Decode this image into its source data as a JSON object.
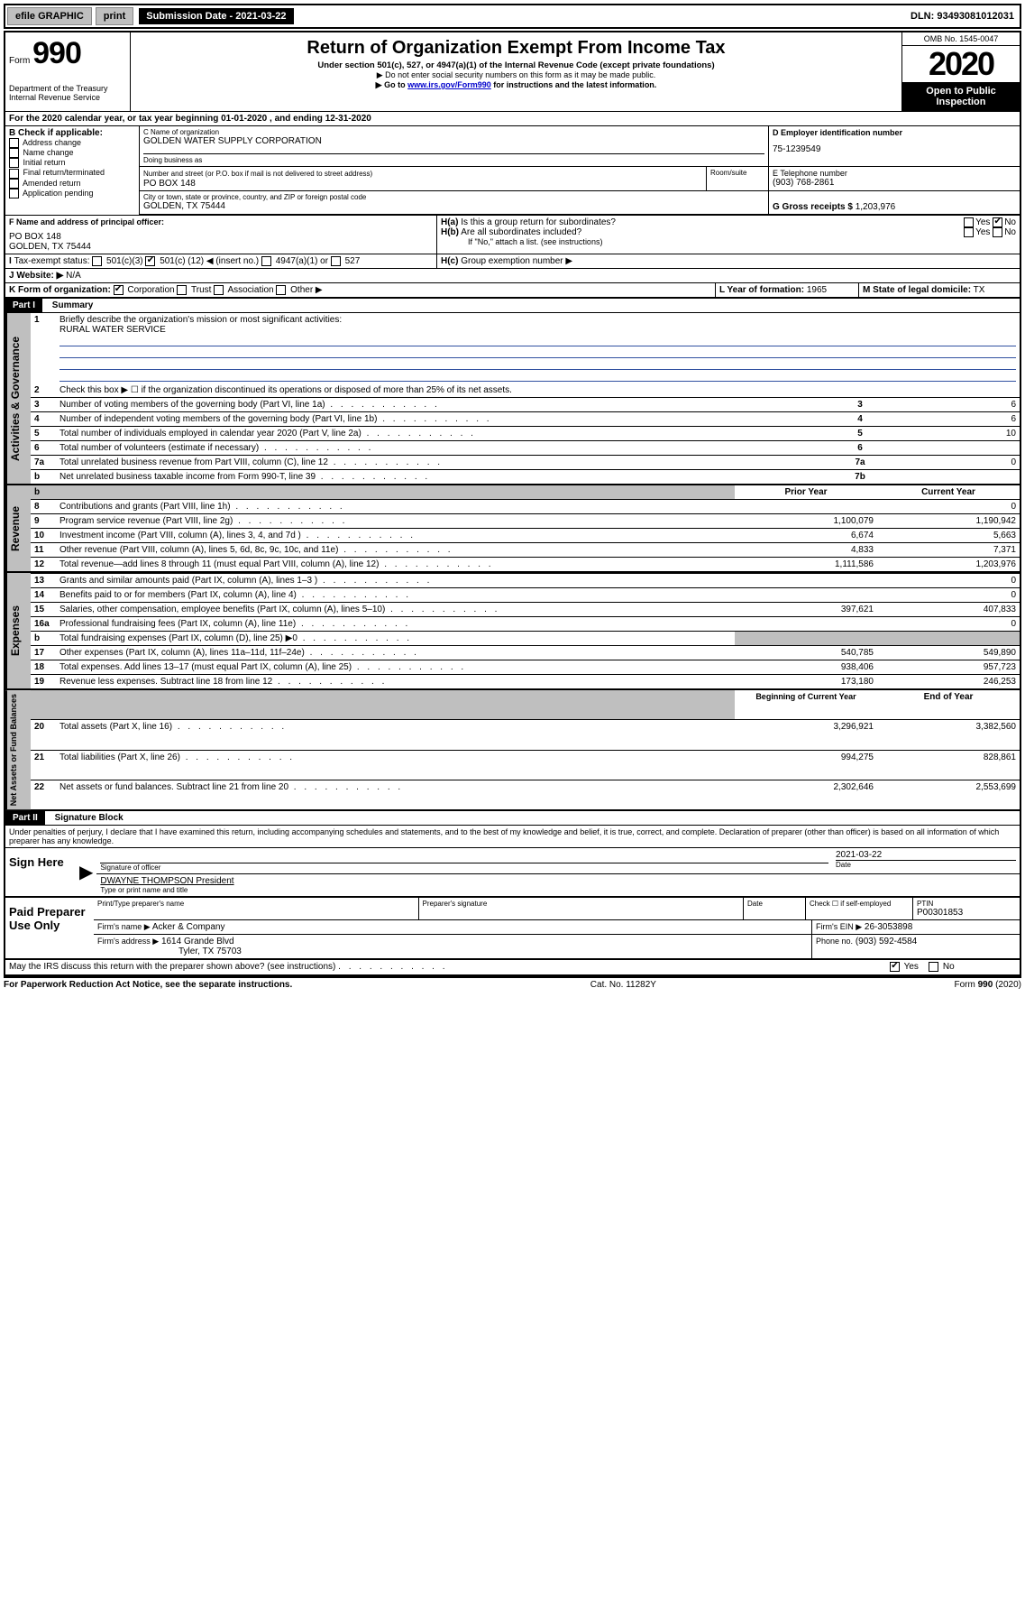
{
  "topbar": {
    "efile": "efile GRAPHIC",
    "print": "print",
    "submission_label": "Submission Date - 2021-03-22",
    "dln": "DLN: 93493081012031"
  },
  "header": {
    "form_prefix": "Form",
    "form_number": "990",
    "dept1": "Department of the Treasury",
    "dept2": "Internal Revenue Service",
    "title": "Return of Organization Exempt From Income Tax",
    "subtitle": "Under section 501(c), 527, or 4947(a)(1) of the Internal Revenue Code (except private foundations)",
    "note1": "▶ Do not enter social security numbers on this form as it may be made public.",
    "note2_pre": "▶ Go to ",
    "note2_link": "www.irs.gov/Form990",
    "note2_post": " for instructions and the latest information.",
    "omb": "OMB No. 1545-0047",
    "year": "2020",
    "open": "Open to Public Inspection"
  },
  "line_a": "For the 2020 calendar year, or tax year beginning 01-01-2020    , and ending 12-31-2020",
  "box_b": {
    "title": "B Check if applicable:",
    "items": [
      "Address change",
      "Name change",
      "Initial return",
      "Final return/terminated",
      "Amended return",
      "Application pending"
    ]
  },
  "box_c": {
    "label_name": "C Name of organization",
    "name": "GOLDEN WATER SUPPLY CORPORATION",
    "dba_label": "Doing business as",
    "street_label": "Number and street (or P.O. box if mail is not delivered to street address)",
    "room_label": "Room/suite",
    "street": "PO BOX 148",
    "city_label": "City or town, state or province, country, and ZIP or foreign postal code",
    "city": "GOLDEN, TX  75444"
  },
  "box_d": {
    "label": "D Employer identification number",
    "value": "75-1239549"
  },
  "box_e": {
    "label": "E Telephone number",
    "value": "(903) 768-2861"
  },
  "box_g": {
    "label": "G Gross receipts $",
    "value": "1,203,976"
  },
  "box_f": {
    "label": "F Name and address of principal officer:",
    "line1": "PO BOX 148",
    "line2": "GOLDEN, TX  75444"
  },
  "box_h": {
    "ha": "Is this a group return for subordinates?",
    "hb": "Are all subordinates included?",
    "hnote": "If \"No,\" attach a list. (see instructions)",
    "hc": "Group exemption number ▶"
  },
  "tax_status": {
    "label": "Tax-exempt status:",
    "opt1": "501(c)(3)",
    "opt2_pre": "501(c) (",
    "opt2_val": "12",
    "opt2_post": ") ◀ (insert no.)",
    "opt3": "4947(a)(1) or",
    "opt4": "527"
  },
  "box_j": {
    "label": "Website: ▶",
    "value": "N/A"
  },
  "box_k": {
    "label": "K Form of organization:",
    "opts": [
      "Corporation",
      "Trust",
      "Association",
      "Other ▶"
    ]
  },
  "box_l": {
    "label": "L Year of formation:",
    "value": "1965"
  },
  "box_m": {
    "label": "M State of legal domicile:",
    "value": "TX"
  },
  "part1": {
    "title": "Part I",
    "subtitle": "Summary",
    "q1": "Briefly describe the organization's mission or most significant activities:",
    "q1_answer": "RURAL WATER SERVICE",
    "q2": "Check this box ▶ ☐  if the organization discontinued its operations or disposed of more than 25% of its net assets.",
    "lines": [
      {
        "n": "3",
        "text": "Number of voting members of the governing body (Part VI, line 1a)",
        "box": "3",
        "val": "6"
      },
      {
        "n": "4",
        "text": "Number of independent voting members of the governing body (Part VI, line 1b)",
        "box": "4",
        "val": "6"
      },
      {
        "n": "5",
        "text": "Total number of individuals employed in calendar year 2020 (Part V, line 2a)",
        "box": "5",
        "val": "10"
      },
      {
        "n": "6",
        "text": "Total number of volunteers (estimate if necessary)",
        "box": "6",
        "val": ""
      },
      {
        "n": "7a",
        "text": "Total unrelated business revenue from Part VIII, column (C), line 12",
        "box": "7a",
        "val": "0"
      },
      {
        "n": "b",
        "text": "Net unrelated business taxable income from Form 990-T, line 39",
        "box": "7b",
        "val": ""
      }
    ],
    "col_prior": "Prior Year",
    "col_current": "Current Year",
    "revenue": [
      {
        "n": "8",
        "text": "Contributions and grants (Part VIII, line 1h)",
        "prior": "",
        "curr": "0"
      },
      {
        "n": "9",
        "text": "Program service revenue (Part VIII, line 2g)",
        "prior": "1,100,079",
        "curr": "1,190,942"
      },
      {
        "n": "10",
        "text": "Investment income (Part VIII, column (A), lines 3, 4, and 7d )",
        "prior": "6,674",
        "curr": "5,663"
      },
      {
        "n": "11",
        "text": "Other revenue (Part VIII, column (A), lines 5, 6d, 8c, 9c, 10c, and 11e)",
        "prior": "4,833",
        "curr": "7,371"
      },
      {
        "n": "12",
        "text": "Total revenue—add lines 8 through 11 (must equal Part VIII, column (A), line 12)",
        "prior": "1,111,586",
        "curr": "1,203,976"
      }
    ],
    "expenses": [
      {
        "n": "13",
        "text": "Grants and similar amounts paid (Part IX, column (A), lines 1–3 )",
        "prior": "",
        "curr": "0"
      },
      {
        "n": "14",
        "text": "Benefits paid to or for members (Part IX, column (A), line 4)",
        "prior": "",
        "curr": "0"
      },
      {
        "n": "15",
        "text": "Salaries, other compensation, employee benefits (Part IX, column (A), lines 5–10)",
        "prior": "397,621",
        "curr": "407,833"
      },
      {
        "n": "16a",
        "text": "Professional fundraising fees (Part IX, column (A), line 11e)",
        "prior": "",
        "curr": "0"
      },
      {
        "n": "b",
        "text": "Total fundraising expenses (Part IX, column (D), line 25) ▶0",
        "prior": "GREY",
        "curr": "GREY"
      },
      {
        "n": "17",
        "text": "Other expenses (Part IX, column (A), lines 11a–11d, 11f–24e)",
        "prior": "540,785",
        "curr": "549,890"
      },
      {
        "n": "18",
        "text": "Total expenses. Add lines 13–17 (must equal Part IX, column (A), line 25)",
        "prior": "938,406",
        "curr": "957,723"
      },
      {
        "n": "19",
        "text": "Revenue less expenses. Subtract line 18 from line 12",
        "prior": "173,180",
        "curr": "246,253"
      }
    ],
    "col_begin": "Beginning of Current Year",
    "col_end": "End of Year",
    "netassets": [
      {
        "n": "20",
        "text": "Total assets (Part X, line 16)",
        "prior": "3,296,921",
        "curr": "3,382,560"
      },
      {
        "n": "21",
        "text": "Total liabilities (Part X, line 26)",
        "prior": "994,275",
        "curr": "828,861"
      },
      {
        "n": "22",
        "text": "Net assets or fund balances. Subtract line 21 from line 20",
        "prior": "2,302,646",
        "curr": "2,553,699"
      }
    ],
    "vert_gov": "Activities & Governance",
    "vert_rev": "Revenue",
    "vert_exp": "Expenses",
    "vert_net": "Net Assets or Fund Balances"
  },
  "part2": {
    "title": "Part II",
    "subtitle": "Signature Block",
    "perjury": "Under penalties of perjury, I declare that I have examined this return, including accompanying schedules and statements, and to the best of my knowledge and belief, it is true, correct, and complete. Declaration of preparer (other than officer) is based on all information of which preparer has any knowledge.",
    "sign_here": "Sign Here",
    "sig_officer": "Signature of officer",
    "sig_date": "2021-03-22",
    "date_label": "Date",
    "officer_name": "DWAYNE THOMPSON President",
    "type_name": "Type or print name and title",
    "paid": "Paid Preparer Use Only",
    "prep_name_label": "Print/Type preparer's name",
    "prep_sig_label": "Preparer's signature",
    "check_self": "Check ☐ if self-employed",
    "ptin_label": "PTIN",
    "ptin": "P00301853",
    "firm_name_label": "Firm's name    ▶",
    "firm_name": "Acker & Company",
    "firm_ein_label": "Firm's EIN ▶",
    "firm_ein": "26-3053898",
    "firm_addr_label": "Firm's address ▶",
    "firm_addr1": "1614 Grande Blvd",
    "firm_addr2": "Tyler, TX  75703",
    "phone_label": "Phone no.",
    "phone": "(903) 592-4584",
    "discuss": "May the IRS discuss this return with the preparer shown above? (see instructions)",
    "yes": "Yes",
    "no": "No"
  },
  "footer": {
    "left": "For Paperwork Reduction Act Notice, see the separate instructions.",
    "mid": "Cat. No. 11282Y",
    "right": "Form 990 (2020)"
  }
}
